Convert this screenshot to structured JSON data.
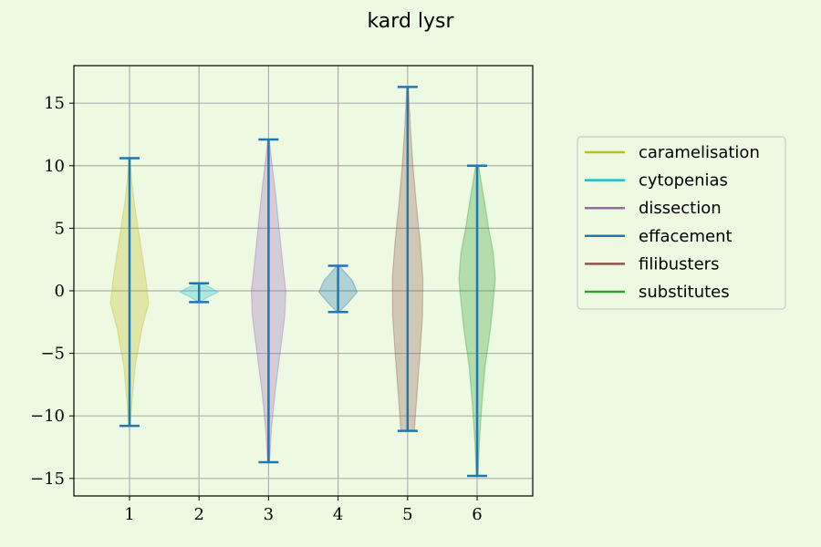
{
  "chart_data": {
    "type": "violin",
    "title": "kard lysr",
    "xlabel": "",
    "ylabel": "",
    "x_ticks": [
      "1",
      "2",
      "3",
      "4",
      "5",
      "6"
    ],
    "ylim": [
      -16.4,
      18.0
    ],
    "y_ticks": [
      -15,
      -10,
      -5,
      0,
      5,
      10,
      15
    ],
    "y_tick_labels": [
      "−15",
      "−10",
      "−5",
      "0",
      "5",
      "10",
      "15"
    ],
    "grid": true,
    "legend_position": "right",
    "series": [
      {
        "name": "caramelisation",
        "position": 1,
        "color": "#bcbd22",
        "min": -10.8,
        "max": 10.6,
        "width": 0.55,
        "profile": [
          [
            -10.8,
            0.05
          ],
          [
            -9,
            0.12
          ],
          [
            -6,
            0.3
          ],
          [
            -3,
            0.65
          ],
          [
            -1,
            1.0
          ],
          [
            1,
            0.85
          ],
          [
            3,
            0.65
          ],
          [
            5,
            0.45
          ],
          [
            7,
            0.25
          ],
          [
            9,
            0.1
          ],
          [
            10.6,
            0.04
          ]
        ]
      },
      {
        "name": "cytopenias",
        "position": 2,
        "color": "#17becf",
        "min": -0.9,
        "max": 0.6,
        "width": 0.55,
        "profile": [
          [
            -0.9,
            0.05
          ],
          [
            -0.5,
            0.45
          ],
          [
            -0.1,
            1.0
          ],
          [
            0.25,
            0.6
          ],
          [
            0.6,
            0.05
          ]
        ]
      },
      {
        "name": "dissection",
        "position": 3,
        "color": "#9467bd",
        "min": -13.7,
        "max": 12.1,
        "width": 0.55,
        "profile": [
          [
            -13.7,
            0.05
          ],
          [
            -11,
            0.15
          ],
          [
            -8,
            0.35
          ],
          [
            -5,
            0.6
          ],
          [
            -2,
            0.85
          ],
          [
            0,
            0.9
          ],
          [
            2,
            0.75
          ],
          [
            5,
            0.55
          ],
          [
            8,
            0.35
          ],
          [
            10.5,
            0.15
          ],
          [
            12.1,
            0.04
          ]
        ]
      },
      {
        "name": "effacement",
        "position": 4,
        "color": "#1f77b4",
        "min": -1.7,
        "max": 2.0,
        "width": 0.55,
        "profile": [
          [
            -1.7,
            0.05
          ],
          [
            -1,
            0.5
          ],
          [
            -0.1,
            1.0
          ],
          [
            0.8,
            0.75
          ],
          [
            1.5,
            0.35
          ],
          [
            2.0,
            0.05
          ]
        ]
      },
      {
        "name": "filibusters",
        "position": 5,
        "color": "#8c564b",
        "min": -11.2,
        "max": 16.3,
        "width": 0.55,
        "profile": [
          [
            -11.2,
            0.35
          ],
          [
            -8,
            0.5
          ],
          [
            -5,
            0.65
          ],
          [
            -2,
            0.78
          ],
          [
            1,
            0.8
          ],
          [
            4,
            0.65
          ],
          [
            7,
            0.45
          ],
          [
            10,
            0.28
          ],
          [
            13,
            0.15
          ],
          [
            16.3,
            0.04
          ]
        ]
      },
      {
        "name": "substitutes",
        "position": 6,
        "color": "#2ca02c",
        "min": -14.8,
        "max": 10.0,
        "width": 0.55,
        "profile": [
          [
            -14.8,
            0.04
          ],
          [
            -12,
            0.12
          ],
          [
            -9,
            0.25
          ],
          [
            -6,
            0.42
          ],
          [
            -3,
            0.7
          ],
          [
            0,
            0.9
          ],
          [
            1,
            0.95
          ],
          [
            3,
            0.85
          ],
          [
            5,
            0.6
          ],
          [
            7,
            0.4
          ],
          [
            9,
            0.18
          ],
          [
            10.0,
            0.08
          ]
        ]
      }
    ],
    "extrema_color": "#1f77b4"
  }
}
